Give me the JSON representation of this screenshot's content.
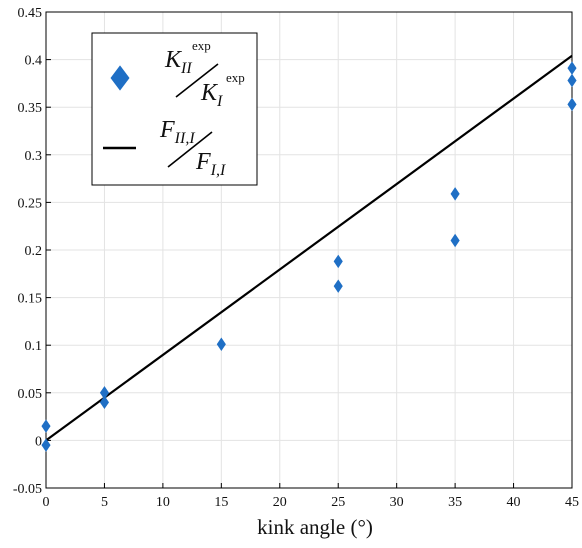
{
  "chart_data": {
    "type": "scatter",
    "xlabel": "kink angle (°)",
    "ylabel": "",
    "xlim": [
      0,
      45
    ],
    "ylim": [
      -0.05,
      0.45
    ],
    "xticks": [
      "0",
      "5",
      "10",
      "15",
      "20",
      "25",
      "30",
      "35",
      "40",
      "45"
    ],
    "yticks": [
      "-0.05",
      "0",
      "0.05",
      "0.1",
      "0.15",
      "0.2",
      "0.25",
      "0.3",
      "0.35",
      "0.4",
      "0.45"
    ],
    "grid": true,
    "legend_position": "top-left",
    "series": [
      {
        "name": "K_II^exp / K_I^exp",
        "type": "scatter",
        "marker": "diamond",
        "color": "#1f6fc5",
        "points": [
          {
            "x": 0,
            "y": 0.015
          },
          {
            "x": 0,
            "y": -0.005
          },
          {
            "x": 5,
            "y": 0.05
          },
          {
            "x": 5,
            "y": 0.04
          },
          {
            "x": 15,
            "y": 0.101
          },
          {
            "x": 25,
            "y": 0.188
          },
          {
            "x": 25,
            "y": 0.162
          },
          {
            "x": 35,
            "y": 0.259
          },
          {
            "x": 35,
            "y": 0.21
          },
          {
            "x": 45,
            "y": 0.391
          },
          {
            "x": 45,
            "y": 0.378
          },
          {
            "x": 45,
            "y": 0.353
          }
        ]
      },
      {
        "name": "F_II,I / F_I,I",
        "type": "line",
        "color": "#000000",
        "points": [
          {
            "x": 0,
            "y": 0.0
          },
          {
            "x": 45,
            "y": 0.404
          }
        ]
      }
    ],
    "legend": {
      "scatter_entry": {
        "main": "K",
        "sub": "II",
        "sup": "exp",
        "den_main": "K",
        "den_sub": "I",
        "den_sup": "exp"
      },
      "line_entry": {
        "main": "F",
        "sub": "II,I",
        "den_main": "F",
        "den_sub": "I,I"
      }
    }
  }
}
